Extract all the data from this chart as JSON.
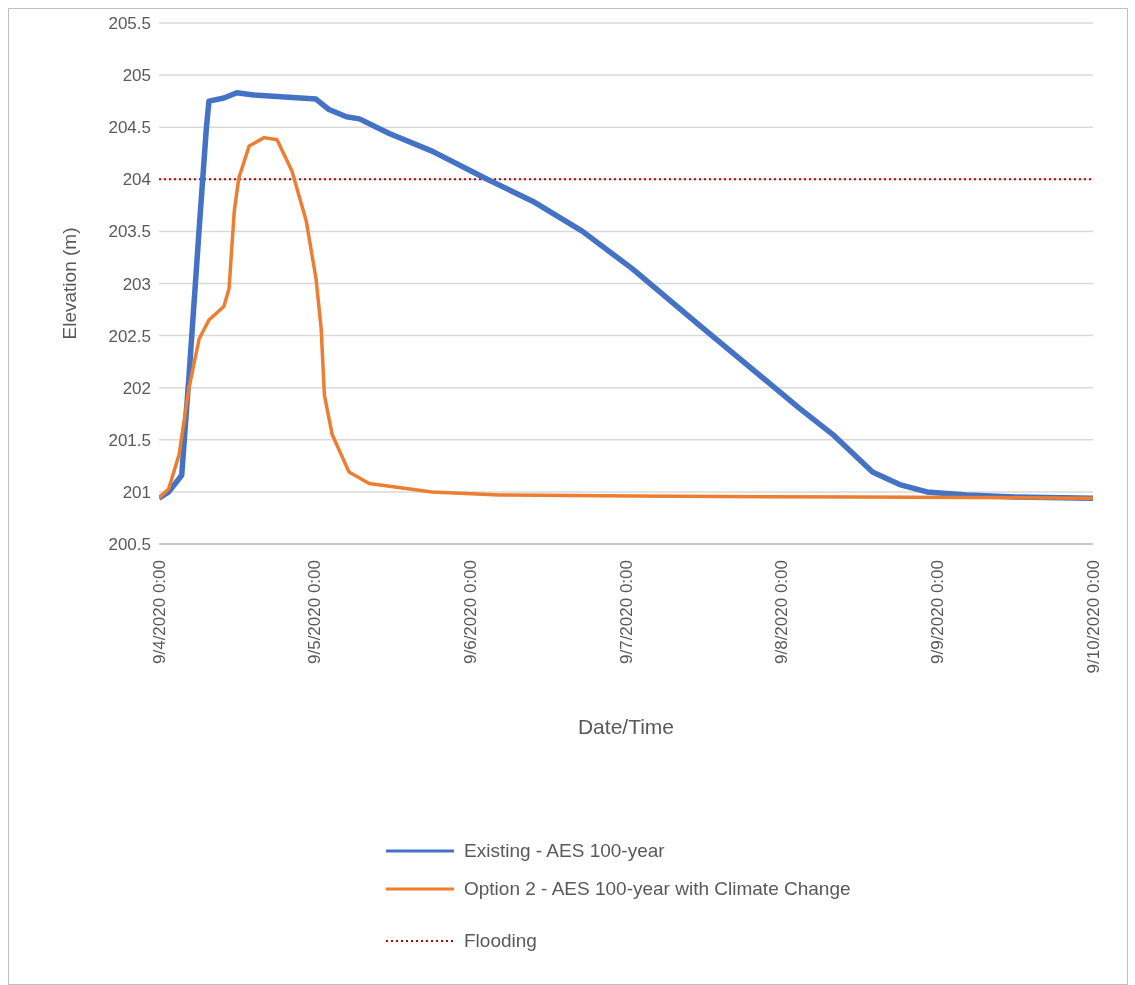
{
  "chart_data": {
    "type": "line",
    "xlabel": "Date/Time",
    "ylabel": "Elevation (m)",
    "xlim": [
      "2020-09-04T00:00",
      "2020-09-10T00:00"
    ],
    "xticks": [
      {
        "value": "2020-09-04T00:00",
        "label": "9/4/2020 0:00"
      },
      {
        "value": "2020-09-05T00:00",
        "label": "9/5/2020 0:00"
      },
      {
        "value": "2020-09-06T00:00",
        "label": "9/6/2020 0:00"
      },
      {
        "value": "2020-09-07T00:00",
        "label": "9/7/2020 0:00"
      },
      {
        "value": "2020-09-08T00:00",
        "label": "9/8/2020 0:00"
      },
      {
        "value": "2020-09-09T00:00",
        "label": "9/9/2020 0:00"
      },
      {
        "value": "2020-09-10T00:00",
        "label": "9/10/2020 0:00"
      }
    ],
    "ylim": [
      200.5,
      205.5
    ],
    "yticks": [
      200.5,
      201,
      201.5,
      202,
      202.5,
      203,
      203.5,
      204,
      204.5,
      205,
      205.5
    ],
    "grid": "y",
    "legend": "bottom",
    "marker": "none",
    "line_style": "solid",
    "series": [
      {
        "name": "Existing - AES 100-year",
        "color": "#4472c4",
        "x": [
          "2020-09-04T00:00",
          "2020-09-04T01:30",
          "2020-09-04T03:30",
          "2020-09-04T04:36",
          "2020-09-04T06:12",
          "2020-09-04T07:18",
          "2020-09-04T07:42",
          "2020-09-04T10:00",
          "2020-09-04T12:00",
          "2020-09-04T14:36",
          "2020-09-05T00:12",
          "2020-09-05T01:12",
          "2020-09-05T02:12",
          "2020-09-05T04:54",
          "2020-09-05T06:54",
          "2020-09-05T11:30",
          "2020-09-05T18:06",
          "2020-09-06T02:36",
          "2020-09-06T09:36",
          "2020-09-06T17:18",
          "2020-09-07T01:00",
          "2020-09-07T11:18",
          "2020-09-08T02:48",
          "2020-09-08T07:54",
          "2020-09-08T14:00",
          "2020-09-08T18:12",
          "2020-09-08T22:24",
          "2020-09-09T04:30",
          "2020-09-09T12:00",
          "2020-09-10T00:00"
        ],
        "values": [
          200.94,
          201.0,
          201.16,
          202.09,
          203.53,
          204.49,
          204.75,
          204.78,
          204.83,
          204.81,
          204.77,
          204.72,
          204.67,
          204.6,
          204.58,
          204.44,
          204.27,
          204.0,
          203.79,
          203.5,
          203.14,
          202.6,
          201.8,
          201.55,
          201.19,
          201.07,
          201.0,
          200.97,
          200.95,
          200.94
        ]
      },
      {
        "name": "Option 2 - AES 100-year with Climate Change",
        "color": "#ed7d31",
        "x": [
          "2020-09-04T00:00",
          "2020-09-04T01:30",
          "2020-09-04T03:06",
          "2020-09-04T04:36",
          "2020-09-04T06:12",
          "2020-09-04T07:42",
          "2020-09-04T10:00",
          "2020-09-04T10:48",
          "2020-09-04T11:36",
          "2020-09-04T12:18",
          "2020-09-04T13:54",
          "2020-09-04T16:12",
          "2020-09-04T18:12",
          "2020-09-04T20:30",
          "2020-09-04T22:42",
          "2020-09-05T00:12",
          "2020-09-05T01:00",
          "2020-09-05T01:30",
          "2020-09-05T02:42",
          "2020-09-05T05:18",
          "2020-09-05T08:24",
          "2020-09-05T18:06",
          "2020-09-06T04:30",
          "2020-09-07T01:00",
          "2020-09-08T12:00",
          "2020-09-10T00:00"
        ],
        "values": [
          200.94,
          201.03,
          201.36,
          201.99,
          202.47,
          202.65,
          202.78,
          202.95,
          203.69,
          204.01,
          204.32,
          204.4,
          204.38,
          204.08,
          203.6,
          203.05,
          202.57,
          201.93,
          201.55,
          201.19,
          201.08,
          201.0,
          200.97,
          200.96,
          200.95,
          200.94
        ]
      }
    ],
    "ref_lines": [
      {
        "axis": "y",
        "value": 204,
        "label": "Flooding",
        "color": "#c00000",
        "line_style": "dotted"
      }
    ]
  }
}
